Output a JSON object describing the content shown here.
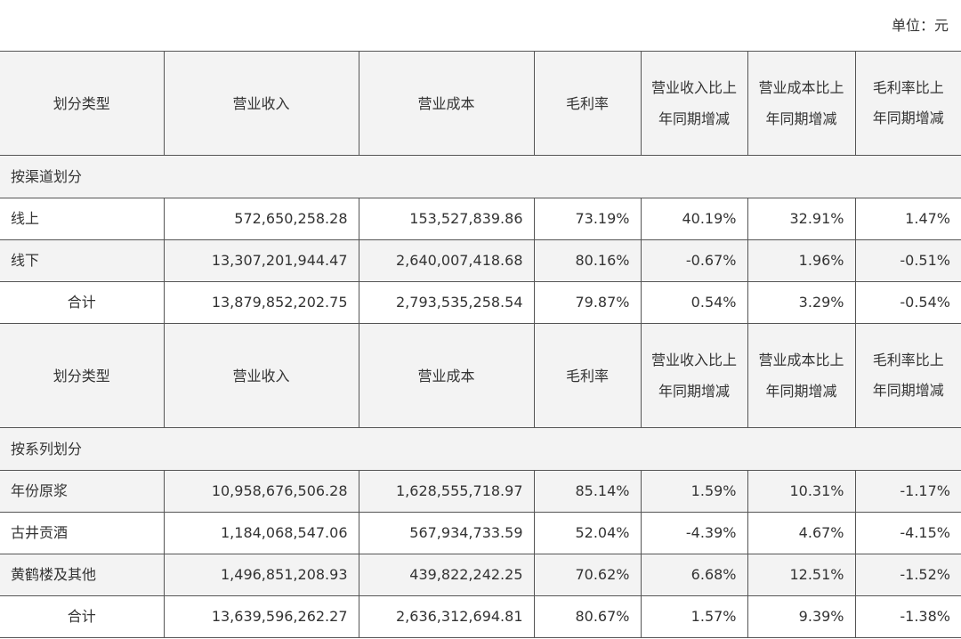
{
  "unit_label": "单位：元",
  "headers": [
    "划分类型",
    "营业收入",
    "营业成本",
    "毛利率",
    "营业收入比上年同期增减",
    "营业成本比上年同期增减",
    "毛利率比上年同期增减"
  ],
  "channel": {
    "section_title": "按渠道划分",
    "rows": [
      {
        "name": "线上",
        "revenue": "572,650,258.28",
        "cost": "153,527,839.86",
        "margin": "73.19%",
        "rev_change": "40.19%",
        "cost_change": "32.91%",
        "margin_change": "1.47%"
      },
      {
        "name": "线下",
        "revenue": "13,307,201,944.47",
        "cost": "2,640,007,418.68",
        "margin": "80.16%",
        "rev_change": "-0.67%",
        "cost_change": "1.96%",
        "margin_change": "-0.51%"
      },
      {
        "name": "合计",
        "revenue": "13,879,852,202.75",
        "cost": "2,793,535,258.54",
        "margin": "79.87%",
        "rev_change": "0.54%",
        "cost_change": "3.29%",
        "margin_change": "-0.54%"
      }
    ]
  },
  "series": {
    "section_title": "按系列划分",
    "rows": [
      {
        "name": "年份原浆",
        "revenue": "10,958,676,506.28",
        "cost": "1,628,555,718.97",
        "margin": "85.14%",
        "rev_change": "1.59%",
        "cost_change": "10.31%",
        "margin_change": "-1.17%"
      },
      {
        "name": "古井贡酒",
        "revenue": "1,184,068,547.06",
        "cost": "567,934,733.59",
        "margin": "52.04%",
        "rev_change": "-4.39%",
        "cost_change": "4.67%",
        "margin_change": "-4.15%"
      },
      {
        "name": "黄鹤楼及其他",
        "revenue": "1,496,851,208.93",
        "cost": "439,822,242.25",
        "margin": "70.62%",
        "rev_change": "6.68%",
        "cost_change": "12.51%",
        "margin_change": "-1.52%"
      },
      {
        "name": "合计",
        "revenue": "13,639,596,262.27",
        "cost": "2,636,312,694.81",
        "margin": "80.67%",
        "rev_change": "1.57%",
        "cost_change": "9.39%",
        "margin_change": "-1.38%"
      }
    ]
  }
}
